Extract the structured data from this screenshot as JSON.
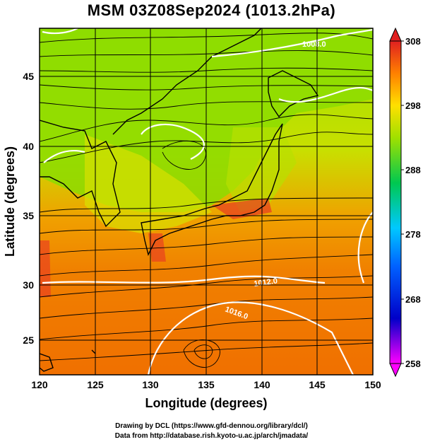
{
  "title": "MSM 03Z08Sep2024 (1013.2hPa)",
  "xlabel": "Longitude (degrees)",
  "ylabel": "Latitude  (degrees)",
  "x_ticks": [
    "120",
    "125",
    "130",
    "135",
    "140",
    "145",
    "150"
  ],
  "y_ticks": [
    "25",
    "30",
    "35",
    "40",
    "45"
  ],
  "colorbar_ticks": [
    "308",
    "298",
    "288",
    "278",
    "268",
    "258"
  ],
  "colorbar": {
    "min": 258,
    "max": 308,
    "colors": [
      "#ff00ff",
      "#0000c8",
      "#00c8ff",
      "#00c850",
      "#a0e000",
      "#ffe000",
      "#ff8000",
      "#e02020"
    ]
  },
  "isobar_labels": [
    "1008.0",
    "1012.0",
    "1016.0"
  ],
  "map": {
    "lon_range": [
      120,
      150
    ],
    "lat_range": [
      22.5,
      47.5
    ],
    "grid": true,
    "field": "temperature (K) shaded with streamlines and isobars",
    "land_color": "#7fd400",
    "ocean_warm_color": "#f08000"
  },
  "credits": {
    "line1": "Drawing by DCL (https://www.gfd-dennou.org/library/dcl/)",
    "line2": "Data from http://database.rish.kyoto-u.ac.jp/arch/jmadata/"
  }
}
